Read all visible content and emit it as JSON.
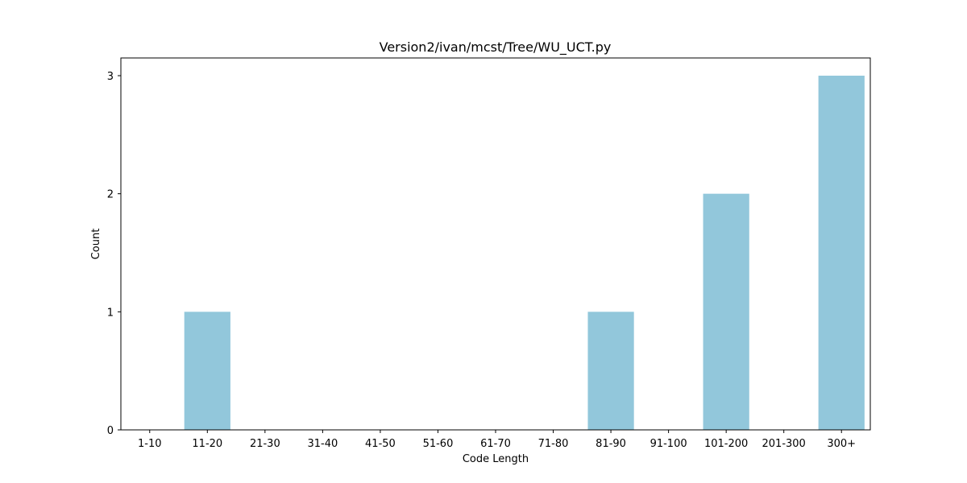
{
  "chart_data": {
    "type": "bar",
    "title": "Version2/ivan/mcst/Tree/WU_UCT.py",
    "xlabel": "Code Length",
    "ylabel": "Count",
    "categories": [
      "1-10",
      "11-20",
      "21-30",
      "31-40",
      "41-50",
      "51-60",
      "61-70",
      "71-80",
      "81-90",
      "91-100",
      "101-200",
      "201-300",
      "300+"
    ],
    "values": [
      0,
      1,
      0,
      0,
      0,
      0,
      0,
      0,
      1,
      0,
      2,
      0,
      3
    ],
    "yticks": [
      "0",
      "1",
      "2",
      "3"
    ],
    "ylim": [
      0,
      3.15
    ],
    "bar_color": "#92c7db",
    "grid": false,
    "legend": "none"
  }
}
